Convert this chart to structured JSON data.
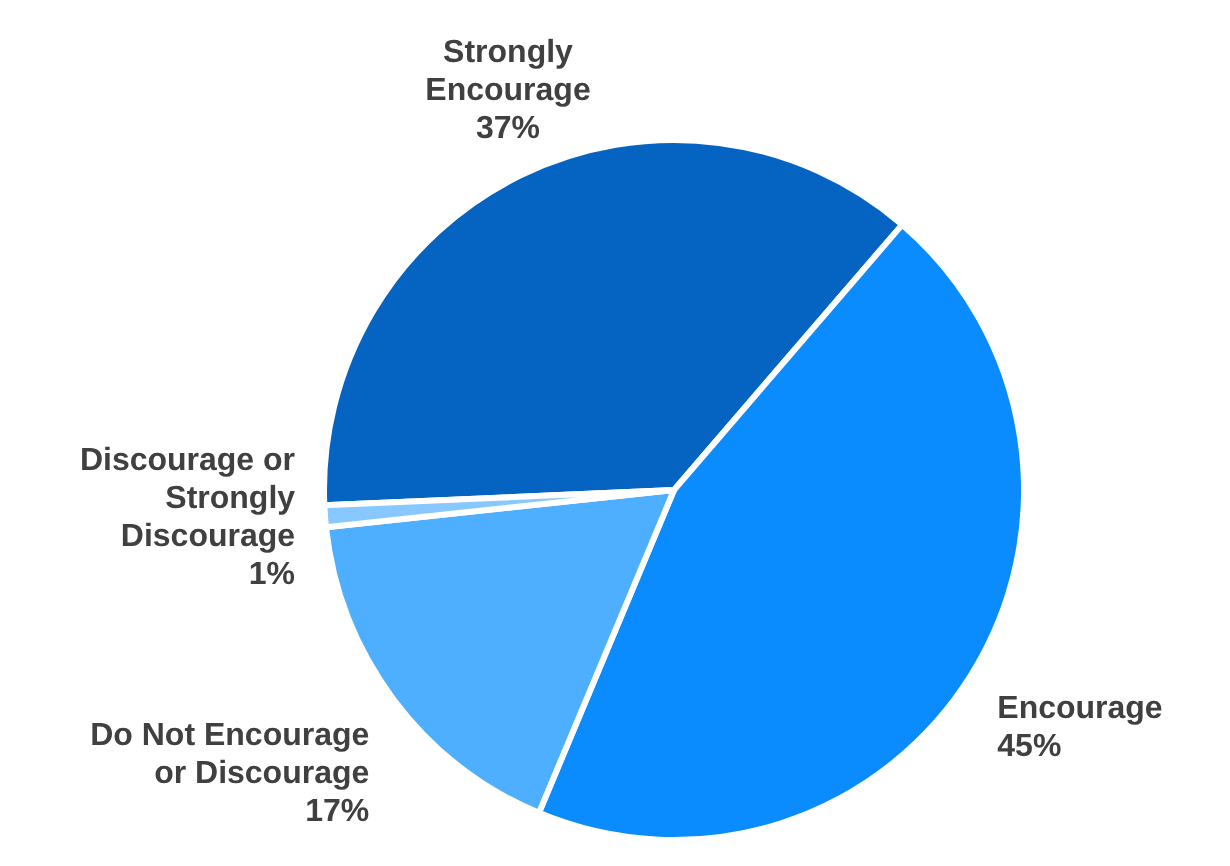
{
  "chart_data": {
    "type": "pie",
    "categories": [
      "Strongly Encourage",
      "Encourage",
      "Do Not Encourage or Discourage",
      "Discourage or Strongly Discourage"
    ],
    "values": [
      37,
      45,
      17,
      1
    ],
    "colors": [
      "#0563c1",
      "#0a8cff",
      "#4eaeff",
      "#86c8ff"
    ],
    "value_labels": [
      "37%",
      "45%",
      "17%",
      "1%"
    ]
  }
}
